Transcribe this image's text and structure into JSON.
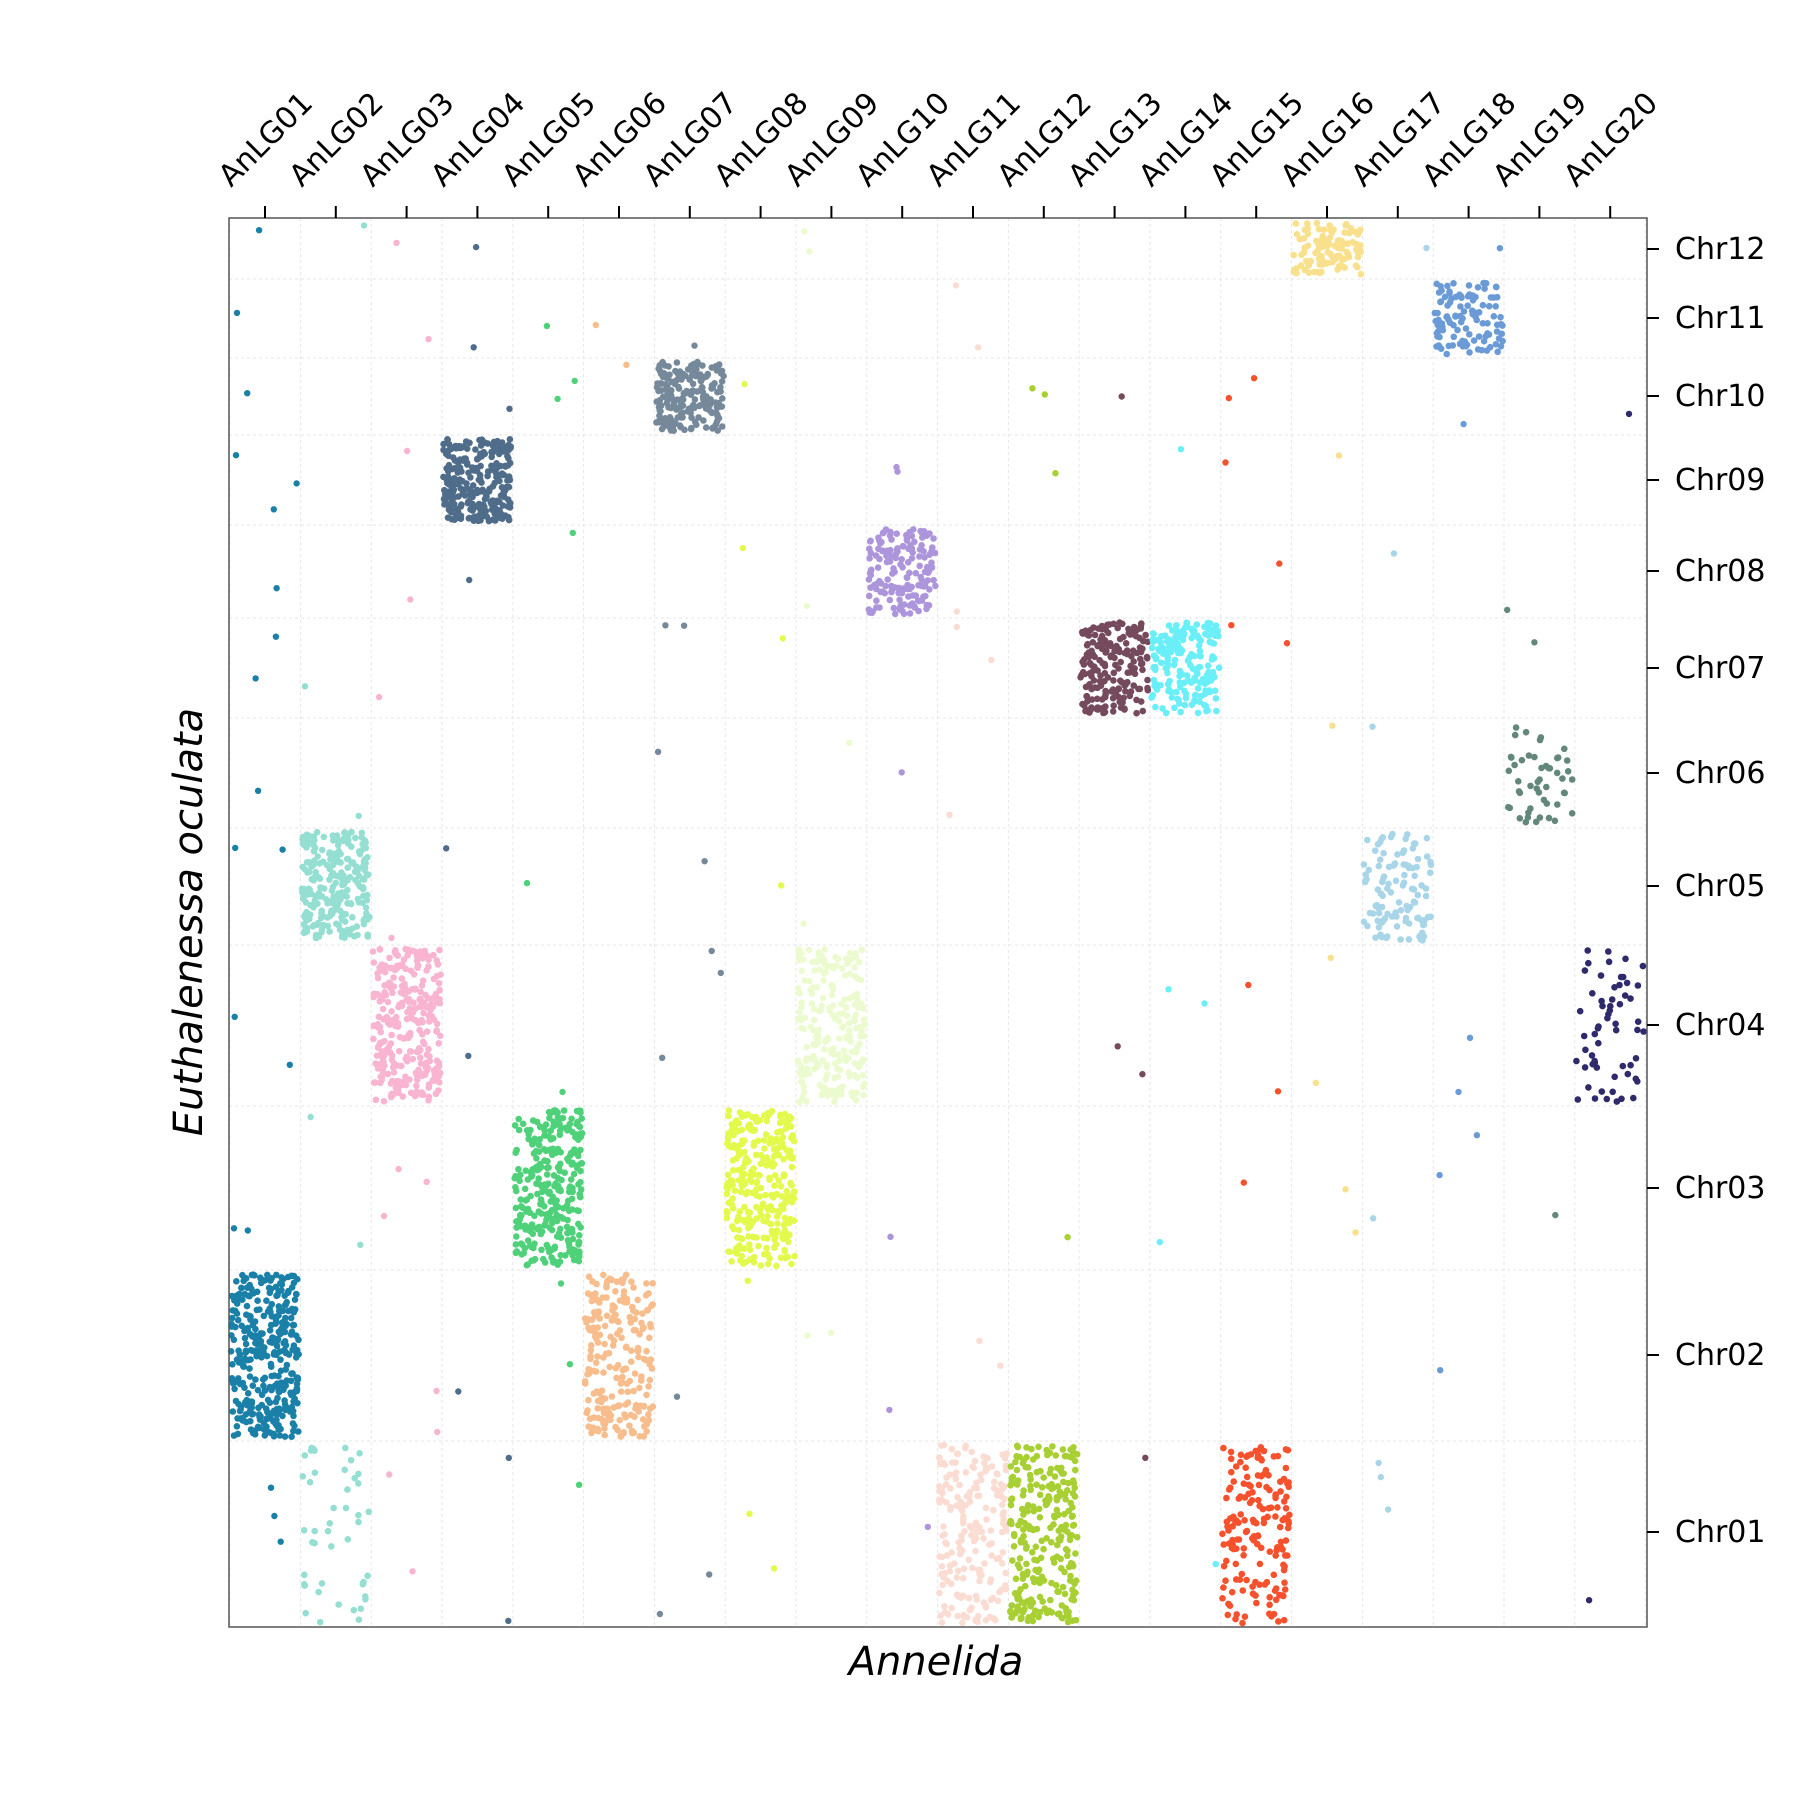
{
  "chart_data": {
    "type": "scatter",
    "title": "",
    "xlabel": "Annelida",
    "ylabel": "Euthalenessa oculata",
    "x_categories": [
      "AnLG01",
      "AnLG02",
      "AnLG03",
      "AnLG04",
      "AnLG05",
      "AnLG06",
      "AnLG07",
      "AnLG08",
      "AnLG09",
      "AnLG10",
      "AnLG11",
      "AnLG12",
      "AnLG13",
      "AnLG14",
      "AnLG15",
      "AnLG16",
      "AnLG17",
      "AnLG18",
      "AnLG19",
      "AnLG20"
    ],
    "y_categories": [
      "Chr12",
      "Chr11",
      "Chr10",
      "Chr09",
      "Chr08",
      "Chr07",
      "Chr06",
      "Chr05",
      "Chr04",
      "Chr03",
      "Chr02",
      "Chr01"
    ],
    "x_axis_position": "top",
    "y_axis_position": "right",
    "grid": true,
    "legend": false,
    "colors": {
      "AnLG01": "#1a80a8",
      "AnLG02": "#95dfd2",
      "AnLG03": "#f8b4d0",
      "AnLG04": "#4f6d8a",
      "AnLG05": "#4fd17a",
      "AnLG06": "#f8bd8c",
      "AnLG07": "#75899a",
      "AnLG08": "#e3fa4d",
      "AnLG09": "#ecfbcf",
      "AnLG10": "#ad95dc",
      "AnLG11": "#fbdcd2",
      "AnLG12": "#a8cf33",
      "AnLG13": "#754a5d",
      "AnLG14": "#6aeef8",
      "AnLG15": "#f6512d",
      "AnLG16": "#f9e08c",
      "AnLG17": "#a9d5e8",
      "AnLG18": "#6b9bd6",
      "AnLG19": "#64877c",
      "AnLG20": "#2e2a6b"
    },
    "dense_blocks": [
      {
        "x": "AnLG01",
        "y": "Chr02",
        "count": 360
      },
      {
        "x": "AnLG02",
        "y": "Chr05",
        "count": 250
      },
      {
        "x": "AnLG02",
        "y": "Chr01",
        "count": 45
      },
      {
        "x": "AnLG03",
        "y": "Chr04",
        "count": 300
      },
      {
        "x": "AnLG04",
        "y": "Chr09",
        "count": 260
      },
      {
        "x": "AnLG05",
        "y": "Chr03",
        "count": 300
      },
      {
        "x": "AnLG06",
        "y": "Chr02",
        "count": 230
      },
      {
        "x": "AnLG07",
        "y": "Chr10",
        "count": 200
      },
      {
        "x": "AnLG08",
        "y": "Chr03",
        "count": 300
      },
      {
        "x": "AnLG09",
        "y": "Chr04",
        "count": 230
      },
      {
        "x": "AnLG10",
        "y": "Chr08",
        "count": 160
      },
      {
        "x": "AnLG11",
        "y": "Chr01",
        "count": 200
      },
      {
        "x": "AnLG12",
        "y": "Chr01",
        "count": 260
      },
      {
        "x": "AnLG13",
        "y": "Chr07",
        "count": 190
      },
      {
        "x": "AnLG14",
        "y": "Chr07",
        "count": 190
      },
      {
        "x": "AnLG15",
        "y": "Chr01",
        "count": 170
      },
      {
        "x": "AnLG16",
        "y": "Chr12",
        "count": 110
      },
      {
        "x": "AnLG17",
        "y": "Chr05",
        "count": 110
      },
      {
        "x": "AnLG18",
        "y": "Chr11",
        "count": 110
      },
      {
        "x": "AnLG19",
        "y": "Chr06",
        "count": 50
      },
      {
        "x": "AnLG20",
        "y": "Chr04",
        "count": 60
      }
    ],
    "scattered_points": [
      {
        "x": "AnLG01",
        "y": "Chr12"
      },
      {
        "x": "AnLG01",
        "y": "Chr11"
      },
      {
        "x": "AnLG01",
        "y": "Chr10"
      },
      {
        "x": "AnLG01",
        "y": "Chr09"
      },
      {
        "x": "AnLG01",
        "y": "Chr09"
      },
      {
        "x": "AnLG01",
        "y": "Chr09"
      },
      {
        "x": "AnLG01",
        "y": "Chr08"
      },
      {
        "x": "AnLG01",
        "y": "Chr07"
      },
      {
        "x": "AnLG01",
        "y": "Chr07"
      },
      {
        "x": "AnLG01",
        "y": "Chr06"
      },
      {
        "x": "AnLG01",
        "y": "Chr05"
      },
      {
        "x": "AnLG01",
        "y": "Chr05"
      },
      {
        "x": "AnLG01",
        "y": "Chr04"
      },
      {
        "x": "AnLG01",
        "y": "Chr04"
      },
      {
        "x": "AnLG01",
        "y": "Chr03"
      },
      {
        "x": "AnLG01",
        "y": "Chr03"
      },
      {
        "x": "AnLG01",
        "y": "Chr01"
      },
      {
        "x": "AnLG01",
        "y": "Chr01"
      },
      {
        "x": "AnLG01",
        "y": "Chr01"
      },
      {
        "x": "AnLG02",
        "y": "Chr12"
      },
      {
        "x": "AnLG02",
        "y": "Chr07"
      },
      {
        "x": "AnLG02",
        "y": "Chr06"
      },
      {
        "x": "AnLG02",
        "y": "Chr03"
      },
      {
        "x": "AnLG02",
        "y": "Chr03"
      },
      {
        "x": "AnLG03",
        "y": "Chr12"
      },
      {
        "x": "AnLG03",
        "y": "Chr11"
      },
      {
        "x": "AnLG03",
        "y": "Chr09"
      },
      {
        "x": "AnLG03",
        "y": "Chr08"
      },
      {
        "x": "AnLG03",
        "y": "Chr07"
      },
      {
        "x": "AnLG03",
        "y": "Chr05"
      },
      {
        "x": "AnLG03",
        "y": "Chr03"
      },
      {
        "x": "AnLG03",
        "y": "Chr03"
      },
      {
        "x": "AnLG03",
        "y": "Chr03"
      },
      {
        "x": "AnLG03",
        "y": "Chr02"
      },
      {
        "x": "AnLG03",
        "y": "Chr02"
      },
      {
        "x": "AnLG03",
        "y": "Chr01"
      },
      {
        "x": "AnLG03",
        "y": "Chr01"
      },
      {
        "x": "AnLG04",
        "y": "Chr12"
      },
      {
        "x": "AnLG04",
        "y": "Chr11"
      },
      {
        "x": "AnLG04",
        "y": "Chr10"
      },
      {
        "x": "AnLG04",
        "y": "Chr08"
      },
      {
        "x": "AnLG04",
        "y": "Chr05"
      },
      {
        "x": "AnLG04",
        "y": "Chr04"
      },
      {
        "x": "AnLG04",
        "y": "Chr02"
      },
      {
        "x": "AnLG04",
        "y": "Chr01"
      },
      {
        "x": "AnLG04",
        "y": "Chr01"
      },
      {
        "x": "AnLG05",
        "y": "Chr11"
      },
      {
        "x": "AnLG05",
        "y": "Chr10"
      },
      {
        "x": "AnLG05",
        "y": "Chr10"
      },
      {
        "x": "AnLG05",
        "y": "Chr08"
      },
      {
        "x": "AnLG05",
        "y": "Chr05"
      },
      {
        "x": "AnLG05",
        "y": "Chr04"
      },
      {
        "x": "AnLG05",
        "y": "Chr02"
      },
      {
        "x": "AnLG05",
        "y": "Chr02"
      },
      {
        "x": "AnLG05",
        "y": "Chr01"
      },
      {
        "x": "AnLG06",
        "y": "Chr11"
      },
      {
        "x": "AnLG06",
        "y": "Chr10"
      },
      {
        "x": "AnLG07",
        "y": "Chr11"
      },
      {
        "x": "AnLG07",
        "y": "Chr07"
      },
      {
        "x": "AnLG07",
        "y": "Chr07"
      },
      {
        "x": "AnLG07",
        "y": "Chr06"
      },
      {
        "x": "AnLG07",
        "y": "Chr05"
      },
      {
        "x": "AnLG07",
        "y": "Chr04"
      },
      {
        "x": "AnLG07",
        "y": "Chr04"
      },
      {
        "x": "AnLG07",
        "y": "Chr04"
      },
      {
        "x": "AnLG07",
        "y": "Chr02"
      },
      {
        "x": "AnLG07",
        "y": "Chr01"
      },
      {
        "x": "AnLG07",
        "y": "Chr01"
      },
      {
        "x": "AnLG08",
        "y": "Chr10"
      },
      {
        "x": "AnLG08",
        "y": "Chr08"
      },
      {
        "x": "AnLG08",
        "y": "Chr07"
      },
      {
        "x": "AnLG08",
        "y": "Chr05"
      },
      {
        "x": "AnLG08",
        "y": "Chr02"
      },
      {
        "x": "AnLG08",
        "y": "Chr01"
      },
      {
        "x": "AnLG08",
        "y": "Chr01"
      },
      {
        "x": "AnLG09",
        "y": "Chr12"
      },
      {
        "x": "AnLG09",
        "y": "Chr12"
      },
      {
        "x": "AnLG09",
        "y": "Chr08"
      },
      {
        "x": "AnLG09",
        "y": "Chr06"
      },
      {
        "x": "AnLG09",
        "y": "Chr05"
      },
      {
        "x": "AnLG09",
        "y": "Chr02"
      },
      {
        "x": "AnLG09",
        "y": "Chr02"
      },
      {
        "x": "AnLG10",
        "y": "Chr09"
      },
      {
        "x": "AnLG10",
        "y": "Chr09"
      },
      {
        "x": "AnLG10",
        "y": "Chr06"
      },
      {
        "x": "AnLG10",
        "y": "Chr03"
      },
      {
        "x": "AnLG10",
        "y": "Chr02"
      },
      {
        "x": "AnLG10",
        "y": "Chr01"
      },
      {
        "x": "AnLG11",
        "y": "Chr11"
      },
      {
        "x": "AnLG11",
        "y": "Chr11"
      },
      {
        "x": "AnLG11",
        "y": "Chr08"
      },
      {
        "x": "AnLG11",
        "y": "Chr07"
      },
      {
        "x": "AnLG11",
        "y": "Chr07"
      },
      {
        "x": "AnLG11",
        "y": "Chr06"
      },
      {
        "x": "AnLG11",
        "y": "Chr02"
      },
      {
        "x": "AnLG11",
        "y": "Chr02"
      },
      {
        "x": "AnLG12",
        "y": "Chr10"
      },
      {
        "x": "AnLG12",
        "y": "Chr10"
      },
      {
        "x": "AnLG12",
        "y": "Chr09"
      },
      {
        "x": "AnLG12",
        "y": "Chr03"
      },
      {
        "x": "AnLG13",
        "y": "Chr10"
      },
      {
        "x": "AnLG13",
        "y": "Chr04"
      },
      {
        "x": "AnLG13",
        "y": "Chr04"
      },
      {
        "x": "AnLG13",
        "y": "Chr01"
      },
      {
        "x": "AnLG14",
        "y": "Chr09"
      },
      {
        "x": "AnLG14",
        "y": "Chr04"
      },
      {
        "x": "AnLG14",
        "y": "Chr04"
      },
      {
        "x": "AnLG14",
        "y": "Chr03"
      },
      {
        "x": "AnLG14",
        "y": "Chr01"
      },
      {
        "x": "AnLG15",
        "y": "Chr10"
      },
      {
        "x": "AnLG15",
        "y": "Chr10"
      },
      {
        "x": "AnLG15",
        "y": "Chr09"
      },
      {
        "x": "AnLG15",
        "y": "Chr08"
      },
      {
        "x": "AnLG15",
        "y": "Chr07"
      },
      {
        "x": "AnLG15",
        "y": "Chr07"
      },
      {
        "x": "AnLG15",
        "y": "Chr04"
      },
      {
        "x": "AnLG15",
        "y": "Chr04"
      },
      {
        "x": "AnLG15",
        "y": "Chr03"
      },
      {
        "x": "AnLG16",
        "y": "Chr09"
      },
      {
        "x": "AnLG16",
        "y": "Chr06"
      },
      {
        "x": "AnLG16",
        "y": "Chr04"
      },
      {
        "x": "AnLG16",
        "y": "Chr04"
      },
      {
        "x": "AnLG16",
        "y": "Chr03"
      },
      {
        "x": "AnLG16",
        "y": "Chr03"
      },
      {
        "x": "AnLG17",
        "y": "Chr12"
      },
      {
        "x": "AnLG17",
        "y": "Chr06"
      },
      {
        "x": "AnLG17",
        "y": "Chr03"
      },
      {
        "x": "AnLG17",
        "y": "Chr01"
      },
      {
        "x": "AnLG17",
        "y": "Chr01"
      },
      {
        "x": "AnLG17",
        "y": "Chr01"
      },
      {
        "x": "AnLG17",
        "y": "Chr08"
      },
      {
        "x": "AnLG18",
        "y": "Chr12"
      },
      {
        "x": "AnLG18",
        "y": "Chr10"
      },
      {
        "x": "AnLG18",
        "y": "Chr04"
      },
      {
        "x": "AnLG18",
        "y": "Chr04"
      },
      {
        "x": "AnLG18",
        "y": "Chr03"
      },
      {
        "x": "AnLG18",
        "y": "Chr03"
      },
      {
        "x": "AnLG18",
        "y": "Chr02"
      },
      {
        "x": "AnLG19",
        "y": "Chr08"
      },
      {
        "x": "AnLG19",
        "y": "Chr07"
      },
      {
        "x": "AnLG19",
        "y": "Chr03"
      },
      {
        "x": "AnLG20",
        "y": "Chr10"
      },
      {
        "x": "AnLG20",
        "y": "Chr01"
      }
    ]
  }
}
